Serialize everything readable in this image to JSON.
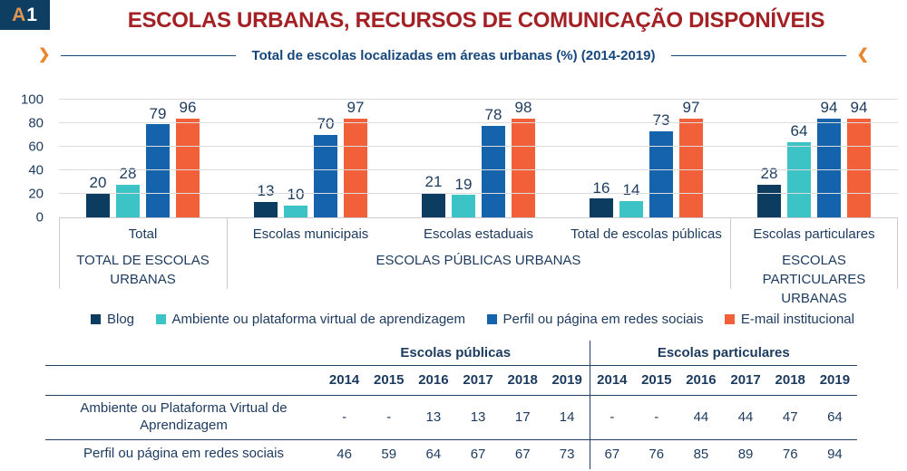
{
  "badge": {
    "letter": "A",
    "number": "1"
  },
  "header": {
    "title": "ESCOLAS URBANAS, RECURSOS DE COMUNICAÇÃO DISPONÍVEIS",
    "subtitle": "Total de escolas localizadas em áreas urbanas (%) (2014-2019)",
    "left_chevron": "❯",
    "right_chevron": "❮"
  },
  "colors": {
    "navy_bar": "#0d3c61",
    "teal_bar": "#3cc3c6",
    "blue_bar": "#1563ac",
    "orange_bar": "#f2603a",
    "title_red": "#a32125",
    "subtitle_blue": "#16477c",
    "chevron_orange": "#e8872e",
    "text_navy": "#1c3a5e",
    "gridline": "#dcdcdc"
  },
  "chart_data": {
    "type": "bar",
    "title": "Total de escolas localizadas em áreas urbanas (%) (2014-2019)",
    "ylabel": "",
    "xlabel": "",
    "ylim": [
      0,
      100
    ],
    "yticks": [
      0,
      20,
      40,
      60,
      80,
      100
    ],
    "grid": true,
    "legend_position": "bottom",
    "categories": [
      "Total",
      "Escolas municipais",
      "Escolas estaduais",
      "Total de escolas públicas",
      "Escolas particulares"
    ],
    "category_groups": [
      {
        "label": "TOTAL DE ESCOLAS URBANAS",
        "span": 1
      },
      {
        "label": "ESCOLAS PÚBLICAS URBANAS",
        "span": 3
      },
      {
        "label": "ESCOLAS PARTICULARES URBANAS",
        "span": 1
      }
    ],
    "series": [
      {
        "name": "Blog",
        "color": "#0d3c61",
        "values": [
          20,
          13,
          21,
          16,
          28
        ]
      },
      {
        "name": "Ambiente ou plataforma virtual de aprendizagem",
        "color": "#3cc3c6",
        "values": [
          28,
          10,
          19,
          14,
          64
        ]
      },
      {
        "name": "Perfil ou página em redes sociais",
        "color": "#1563ac",
        "values": [
          79,
          70,
          78,
          73,
          94
        ]
      },
      {
        "name": "E-mail institucional",
        "color": "#f2603a",
        "values": [
          96,
          97,
          98,
          97,
          94
        ]
      }
    ]
  },
  "table": {
    "column_groups": [
      {
        "label": "Escolas públicas",
        "span": 6
      },
      {
        "label": "Escolas particulares",
        "span": 6
      }
    ],
    "years": [
      "2014",
      "2015",
      "2016",
      "2017",
      "2018",
      "2019",
      "2014",
      "2015",
      "2016",
      "2017",
      "2018",
      "2019"
    ],
    "rows": [
      {
        "label": "Ambiente ou Plataforma Virtual de Aprendizagem",
        "values": [
          "-",
          "-",
          "13",
          "13",
          "17",
          "14",
          "-",
          "-",
          "44",
          "44",
          "47",
          "64"
        ]
      },
      {
        "label": "Perfil ou página em redes sociais",
        "values": [
          "46",
          "59",
          "64",
          "67",
          "67",
          "73",
          "67",
          "76",
          "85",
          "89",
          "76",
          "94"
        ]
      }
    ]
  }
}
